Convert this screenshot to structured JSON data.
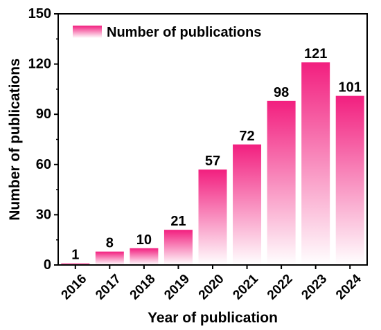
{
  "chart_data": {
    "type": "bar",
    "title": "",
    "xlabel": "Year of publication",
    "ylabel": "Number of publications",
    "categories": [
      "2016",
      "2017",
      "2018",
      "2019",
      "2020",
      "2021",
      "2022",
      "2023",
      "2024"
    ],
    "series": [
      {
        "name": "Number of publications",
        "values": [
          1,
          8,
          10,
          21,
          57,
          72,
          98,
          121,
          101
        ]
      }
    ],
    "ylim": [
      0,
      150
    ],
    "yticks": [
      "0",
      "30",
      "60",
      "90",
      "120",
      "150"
    ],
    "data_labels": [
      "1",
      "8",
      "10",
      "21",
      "57",
      "72",
      "98",
      "121",
      "101"
    ],
    "legend_position": "top-left",
    "grid": false,
    "colors": {
      "bar_top": "#f21f7f",
      "bar_bottom": "#ffffff"
    }
  }
}
